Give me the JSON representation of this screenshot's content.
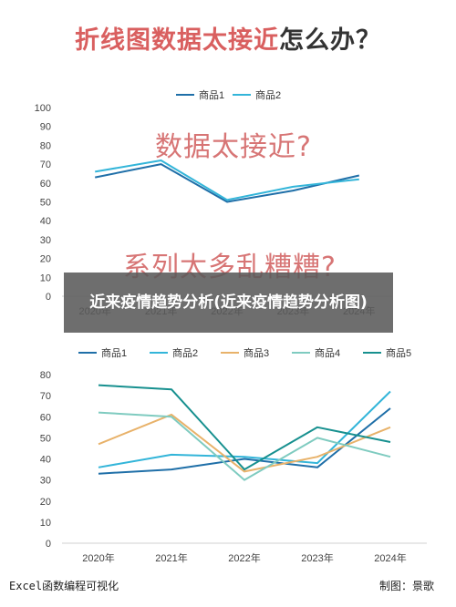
{
  "header": {
    "title_red": "折线图数据太接近",
    "title_dark": "怎么办？"
  },
  "annotations": {
    "top_note": "数据太接近?",
    "bottom_note": "系列太多乱糟糟?"
  },
  "overlay": {
    "caption": "近来疫情趋势分析(近来疫情趋势分析图)"
  },
  "footer": {
    "left": "Excel函数编程可视化",
    "right": "制图：景歌"
  },
  "colors": {
    "title_red": "#d95f5f",
    "series1": "#1f6fa8",
    "series2": "#33b5d9",
    "series3": "#e8b26a",
    "series4": "#7fcbc0",
    "series5": "#17908f"
  },
  "chart_data": [
    {
      "type": "line",
      "categories": [
        "2020年",
        "2021年",
        "2022年",
        "2023年",
        "2024年"
      ],
      "ylim": [
        0,
        100
      ],
      "yticks": [
        "0",
        "10",
        "20",
        "30",
        "40",
        "50",
        "60",
        "70",
        "80",
        "90",
        "100"
      ],
      "legend_position": "top",
      "grid": false,
      "series": [
        {
          "name": "商品1",
          "values": [
            63,
            70,
            50,
            56,
            64
          ]
        },
        {
          "name": "商品2",
          "values": [
            66,
            72,
            51,
            58,
            62
          ]
        }
      ]
    },
    {
      "type": "line",
      "categories": [
        "2020年",
        "2021年",
        "2022年",
        "2023年",
        "2024年"
      ],
      "ylim": [
        0,
        80
      ],
      "yticks": [
        "0",
        "10",
        "20",
        "30",
        "40",
        "50",
        "60",
        "70",
        "80"
      ],
      "legend_position": "top",
      "grid": false,
      "series": [
        {
          "name": "商品1",
          "values": [
            33,
            35,
            40,
            36,
            64
          ]
        },
        {
          "name": "商品2",
          "values": [
            36,
            42,
            41,
            38,
            72
          ]
        },
        {
          "name": "商品3",
          "values": [
            47,
            61,
            34,
            41,
            55
          ]
        },
        {
          "name": "商品4",
          "values": [
            62,
            60,
            30,
            50,
            41
          ]
        },
        {
          "name": "商品5",
          "values": [
            75,
            73,
            35,
            55,
            48
          ]
        }
      ]
    }
  ]
}
